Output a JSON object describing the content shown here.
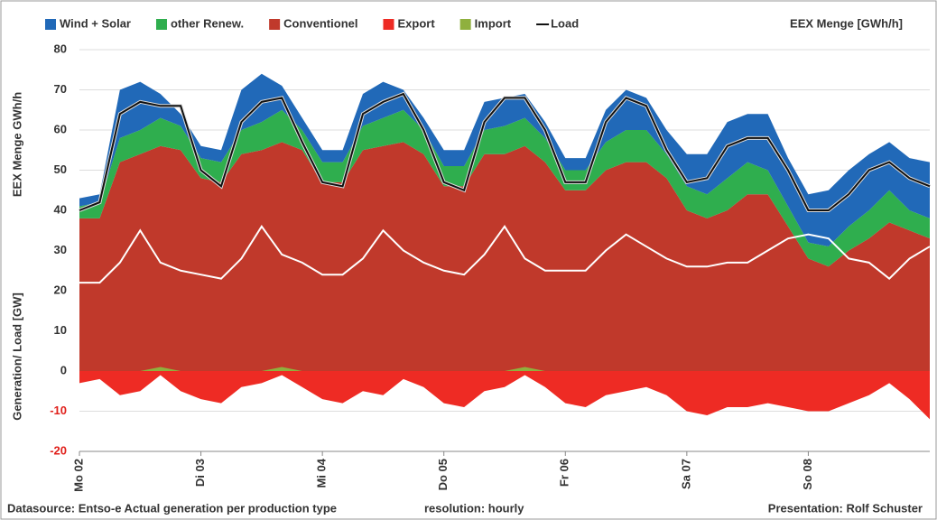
{
  "chart_data": {
    "type": "stacked-area",
    "legend_extra": "EEX Menge [GWh/h]",
    "y_title_upper": "EEX Menge GWh/h",
    "y_title_lower": "Generation/ Load  [GW]",
    "footer_left": "Datasource: Entso-e  Actual generation per production type",
    "footer_mid": "resolution: hourly",
    "footer_right": "Presentation:  Rolf Schuster",
    "categories": [
      "Mo 02",
      null,
      null,
      null,
      null,
      null,
      "Di 03",
      null,
      null,
      null,
      null,
      null,
      "Mi 04",
      null,
      null,
      null,
      null,
      null,
      "Do 05",
      null,
      null,
      null,
      null,
      null,
      "Fr 06",
      null,
      null,
      null,
      null,
      null,
      "Sa 07",
      null,
      null,
      null,
      null,
      null,
      "So 08",
      null,
      null,
      null,
      null,
      null,
      null
    ],
    "ylim": [
      -20,
      80
    ],
    "yticks": [
      -20,
      -10,
      0,
      10,
      20,
      30,
      40,
      50,
      60,
      70,
      80
    ],
    "grid": true,
    "series": [
      {
        "name": "Wind + Solar",
        "color": "#2169b8",
        "stack": "pos",
        "values": [
          2,
          2,
          12,
          12,
          6,
          3,
          3,
          3,
          10,
          12,
          6,
          3,
          3,
          3,
          8,
          9,
          5,
          3,
          4,
          4,
          7,
          7,
          6,
          4,
          3,
          3,
          8,
          10,
          8,
          6,
          8,
          10,
          14,
          12,
          14,
          12,
          12,
          14,
          14,
          14,
          12,
          13,
          14
        ]
      },
      {
        "name": "other Renew.",
        "color": "#2fae4e",
        "stack": "pos",
        "values": [
          3,
          4,
          6,
          6,
          7,
          6,
          5,
          5,
          6,
          7,
          8,
          5,
          5,
          5,
          6,
          7,
          8,
          6,
          5,
          5,
          6,
          7,
          7,
          6,
          5,
          5,
          7,
          8,
          8,
          6,
          6,
          6,
          8,
          8,
          6,
          5,
          4,
          5,
          6,
          7,
          8,
          5,
          5
        ]
      },
      {
        "name": "Conventionel",
        "color": "#c0392b",
        "stack": "pos",
        "values": [
          38,
          38,
          52,
          54,
          56,
          55,
          48,
          47,
          54,
          55,
          57,
          55,
          47,
          47,
          55,
          56,
          57,
          54,
          46,
          46,
          54,
          54,
          56,
          52,
          45,
          45,
          50,
          52,
          52,
          48,
          40,
          38,
          40,
          44,
          44,
          36,
          28,
          26,
          30,
          33,
          37,
          35,
          33
        ]
      },
      {
        "name": "Export",
        "color": "#ee2b24",
        "stack": "neg",
        "values": [
          -3,
          -2,
          -6,
          -5,
          -1,
          -5,
          -7,
          -8,
          -4,
          -3,
          -1,
          -4,
          -7,
          -8,
          -5,
          -6,
          -2,
          -4,
          -8,
          -9,
          -5,
          -4,
          -1,
          -4,
          -8,
          -9,
          -6,
          -5,
          -4,
          -6,
          -10,
          -11,
          -9,
          -9,
          -8,
          -9,
          -10,
          -10,
          -8,
          -6,
          -3,
          -7,
          -12
        ]
      },
      {
        "name": "Import",
        "color": "#8fb03e",
        "stack": "over",
        "values": [
          0,
          0,
          0,
          0,
          1,
          0,
          0,
          0,
          0,
          0,
          1,
          0,
          0,
          0,
          0,
          0,
          0,
          0,
          0,
          0,
          0,
          0,
          1,
          0,
          0,
          0,
          0,
          0,
          0,
          0,
          0,
          0,
          0,
          0,
          0,
          0,
          0,
          0,
          0,
          0,
          0,
          0,
          0
        ]
      },
      {
        "name": "Load",
        "color": "#111111",
        "stack": "line",
        "values": [
          40,
          42,
          64,
          67,
          66,
          66,
          50,
          46,
          62,
          67,
          68,
          57,
          47,
          46,
          64,
          67,
          69,
          60,
          47,
          45,
          62,
          68,
          68,
          60,
          47,
          47,
          62,
          68,
          66,
          55,
          47,
          48,
          56,
          58,
          58,
          50,
          40,
          40,
          44,
          50,
          52,
          48,
          46
        ]
      },
      {
        "name": "EEX",
        "color": "#ffffff",
        "stack": "line",
        "values": [
          22,
          22,
          27,
          35,
          27,
          25,
          24,
          23,
          28,
          36,
          29,
          27,
          24,
          24,
          28,
          35,
          30,
          27,
          25,
          24,
          29,
          36,
          28,
          25,
          25,
          25,
          30,
          34,
          31,
          28,
          26,
          26,
          27,
          27,
          30,
          33,
          34,
          33,
          28,
          27,
          23,
          28,
          31
        ]
      }
    ]
  }
}
